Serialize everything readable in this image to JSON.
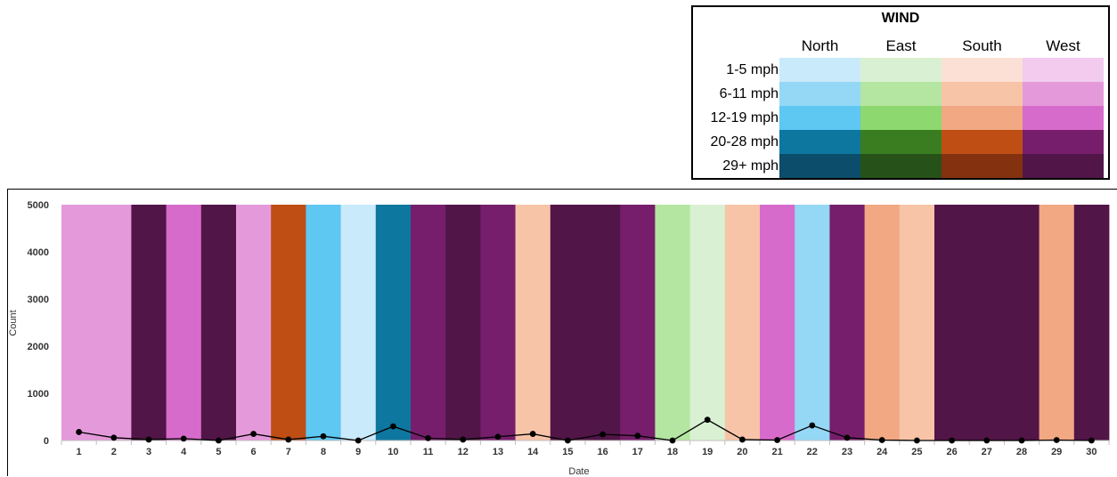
{
  "legend": {
    "title": "WIND",
    "directions": [
      "North",
      "East",
      "South",
      "West"
    ],
    "speeds": [
      "1-5 mph",
      "6-11 mph",
      "12-19 mph",
      "20-28 mph",
      "29+ mph"
    ],
    "colors": [
      [
        "#c9eafb",
        "#d9f1d2",
        "#fde0d5",
        "#f2cbee"
      ],
      [
        "#94d8f6",
        "#b4e6a1",
        "#f7c4a8",
        "#e49ada"
      ],
      [
        "#5ec7f2",
        "#8dd86f",
        "#f1a883",
        "#d76bcb"
      ],
      [
        "#0e779f",
        "#3a7d21",
        "#bf4e14",
        "#761e6b"
      ],
      [
        "#0b4d6a",
        "#265219",
        "#83310e",
        "#511547"
      ]
    ]
  },
  "chart_data": {
    "type": "bar",
    "xlabel": "Date",
    "ylabel": "Count",
    "ylim": [
      0,
      5000
    ],
    "yticks": [
      0,
      1000,
      2000,
      3000,
      4000,
      5000
    ],
    "categories": [
      "1",
      "2",
      "3",
      "4",
      "5",
      "6",
      "7",
      "8",
      "9",
      "10",
      "11",
      "12",
      "13",
      "14",
      "15",
      "16",
      "17",
      "18",
      "19",
      "20",
      "21",
      "22",
      "23",
      "24",
      "25",
      "26",
      "27",
      "28",
      "29",
      "30"
    ],
    "bar_values": [
      5000,
      5000,
      5000,
      5000,
      5000,
      5000,
      5000,
      5000,
      5000,
      5000,
      5000,
      5000,
      5000,
      5000,
      5000,
      5000,
      5000,
      5000,
      5000,
      5000,
      5000,
      5000,
      5000,
      5000,
      5000,
      5000,
      5000,
      5000,
      5000,
      5000
    ],
    "bar_colors": [
      "#e49ada",
      "#e49ada",
      "#511547",
      "#d76bcb",
      "#511547",
      "#e49ada",
      "#bf4e14",
      "#5ec7f2",
      "#c9eafb",
      "#0e779f",
      "#761e6b",
      "#511547",
      "#761e6b",
      "#f7c4a8",
      "#511547",
      "#511547",
      "#761e6b",
      "#b4e6a1",
      "#d9f1d2",
      "#f7c4a8",
      "#d76bcb",
      "#94d8f6",
      "#761e6b",
      "#f1a883",
      "#f7c4a8",
      "#511547",
      "#511547",
      "#511547",
      "#f1a883",
      "#511547"
    ],
    "line_values": [
      180,
      60,
      20,
      40,
      0,
      140,
      20,
      90,
      0,
      300,
      50,
      20,
      80,
      140,
      0,
      130,
      100,
      0,
      440,
      20,
      10,
      320,
      60,
      10,
      0,
      0,
      0,
      0,
      10,
      0
    ]
  }
}
